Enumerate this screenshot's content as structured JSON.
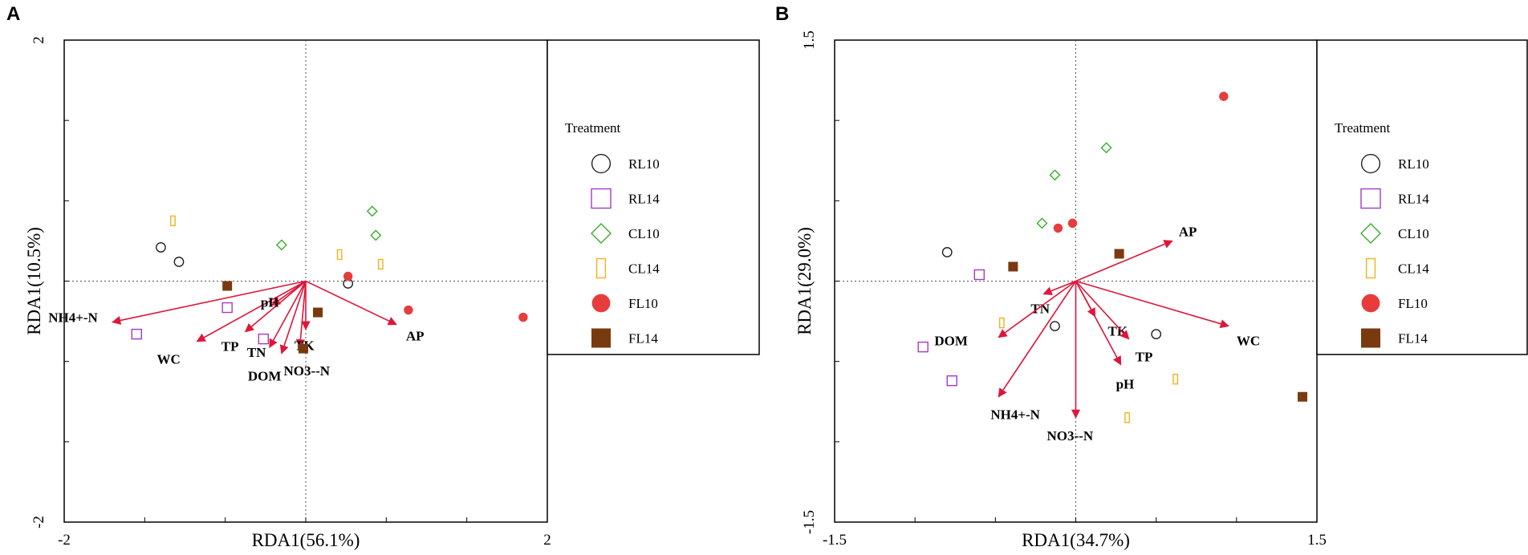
{
  "figure": {
    "palette": {
      "RL10": "#222222",
      "RL14": "#a23bc6",
      "CL10": "#3aad2a",
      "CL14": "#f2b21b",
      "FL10": "#e83c3c",
      "FL14": "#7a3a0f",
      "arrow": "#e0153a",
      "frame": "#000000",
      "refline": "#555555"
    }
  },
  "chart_data": [
    {
      "panel": "A",
      "type": "scatter",
      "subtype": "rda-biplot",
      "xlabel": "RDA1(56.1%)",
      "ylabel": "RDA1(10.5%)",
      "xlim": [
        -2,
        2
      ],
      "ylim": [
        -2,
        2
      ],
      "xticks": [
        "-2",
        "2"
      ],
      "yticks": [
        "2",
        "-2"
      ],
      "legend": {
        "title": "Treatment",
        "entries": [
          "RL10",
          "RL14",
          "CL10",
          "CL14",
          "FL10",
          "FL14"
        ],
        "placement": "right"
      },
      "vectors": [
        {
          "label": "NH4+-N",
          "x": -1.6,
          "y": -0.34
        },
        {
          "label": "WC",
          "x": -0.9,
          "y": -0.5
        },
        {
          "label": "TP",
          "x": -0.5,
          "y": -0.42
        },
        {
          "label": "pH",
          "x": -0.28,
          "y": -0.2
        },
        {
          "label": "TN",
          "x": -0.3,
          "y": -0.55
        },
        {
          "label": "DOM",
          "x": -0.2,
          "y": -0.6
        },
        {
          "label": "NO3--N",
          "x": -0.05,
          "y": -0.55
        },
        {
          "label": "TK",
          "x": 0.0,
          "y": -0.4
        },
        {
          "label": "AP",
          "x": 0.75,
          "y": -0.36
        }
      ],
      "points": [
        {
          "group": "RL10",
          "x": -1.2,
          "y": 0.28
        },
        {
          "group": "RL10",
          "x": -1.05,
          "y": 0.16
        },
        {
          "group": "RL10",
          "x": 0.35,
          "y": -0.02
        },
        {
          "group": "RL14",
          "x": -1.4,
          "y": -0.44
        },
        {
          "group": "RL14",
          "x": -0.65,
          "y": -0.22
        },
        {
          "group": "RL14",
          "x": -0.35,
          "y": -0.48
        },
        {
          "group": "CL10",
          "x": -0.2,
          "y": 0.3
        },
        {
          "group": "CL10",
          "x": 0.55,
          "y": 0.58
        },
        {
          "group": "CL10",
          "x": 0.58,
          "y": 0.38
        },
        {
          "group": "CL14",
          "x": -1.1,
          "y": 0.5
        },
        {
          "group": "CL14",
          "x": 0.28,
          "y": 0.22
        },
        {
          "group": "CL14",
          "x": 0.62,
          "y": 0.14
        },
        {
          "group": "FL10",
          "x": 0.35,
          "y": 0.04
        },
        {
          "group": "FL10",
          "x": 0.85,
          "y": -0.24
        },
        {
          "group": "FL10",
          "x": 1.8,
          "y": -0.3
        },
        {
          "group": "FL14",
          "x": -0.65,
          "y": -0.04
        },
        {
          "group": "FL14",
          "x": 0.1,
          "y": -0.26
        },
        {
          "group": "FL14",
          "x": -0.02,
          "y": -0.56
        }
      ]
    },
    {
      "panel": "B",
      "type": "scatter",
      "subtype": "rda-biplot",
      "xlabel": "RDA1(34.7%)",
      "ylabel": "RDA1(29.0%)",
      "xlim": [
        -1.5,
        1.5
      ],
      "ylim": [
        -1.5,
        1.5
      ],
      "xticks": [
        "-1.5",
        "1.5"
      ],
      "yticks": [
        "1.5",
        "-1.5"
      ],
      "legend": {
        "title": "Treatment",
        "entries": [
          "RL10",
          "RL14",
          "CL10",
          "CL14",
          "FL10",
          "FL14"
        ],
        "placement": "right"
      },
      "vectors": [
        {
          "label": "AP",
          "x": 0.6,
          "y": 0.25
        },
        {
          "label": "WC",
          "x": 0.95,
          "y": -0.28
        },
        {
          "label": "TN",
          "x": -0.2,
          "y": -0.08
        },
        {
          "label": "TK",
          "x": 0.12,
          "y": -0.22
        },
        {
          "label": "TP",
          "x": 0.33,
          "y": -0.36
        },
        {
          "label": "pH",
          "x": 0.28,
          "y": -0.52
        },
        {
          "label": "DOM",
          "x": -0.48,
          "y": -0.35
        },
        {
          "label": "NH4+-N",
          "x": -0.48,
          "y": -0.72
        },
        {
          "label": "NO3--N",
          "x": 0.0,
          "y": -0.85
        }
      ],
      "points": [
        {
          "group": "RL10",
          "x": -0.8,
          "y": 0.18
        },
        {
          "group": "RL10",
          "x": -0.13,
          "y": -0.28
        },
        {
          "group": "RL10",
          "x": 0.5,
          "y": -0.33
        },
        {
          "group": "RL14",
          "x": -0.6,
          "y": 0.04
        },
        {
          "group": "RL14",
          "x": -0.95,
          "y": -0.41
        },
        {
          "group": "RL14",
          "x": -0.77,
          "y": -0.62
        },
        {
          "group": "CL10",
          "x": -0.13,
          "y": 0.66
        },
        {
          "group": "CL10",
          "x": 0.19,
          "y": 0.83
        },
        {
          "group": "CL10",
          "x": -0.21,
          "y": 0.36
        },
        {
          "group": "CL14",
          "x": -0.46,
          "y": -0.26
        },
        {
          "group": "CL14",
          "x": 0.62,
          "y": -0.61
        },
        {
          "group": "CL14",
          "x": 0.32,
          "y": -0.85
        },
        {
          "group": "FL10",
          "x": 0.92,
          "y": 1.15
        },
        {
          "group": "FL10",
          "x": -0.11,
          "y": 0.33
        },
        {
          "group": "FL10",
          "x": -0.02,
          "y": 0.36
        },
        {
          "group": "FL14",
          "x": -0.39,
          "y": 0.09
        },
        {
          "group": "FL14",
          "x": 0.27,
          "y": 0.17
        },
        {
          "group": "FL14",
          "x": 1.41,
          "y": -0.72
        }
      ]
    }
  ]
}
